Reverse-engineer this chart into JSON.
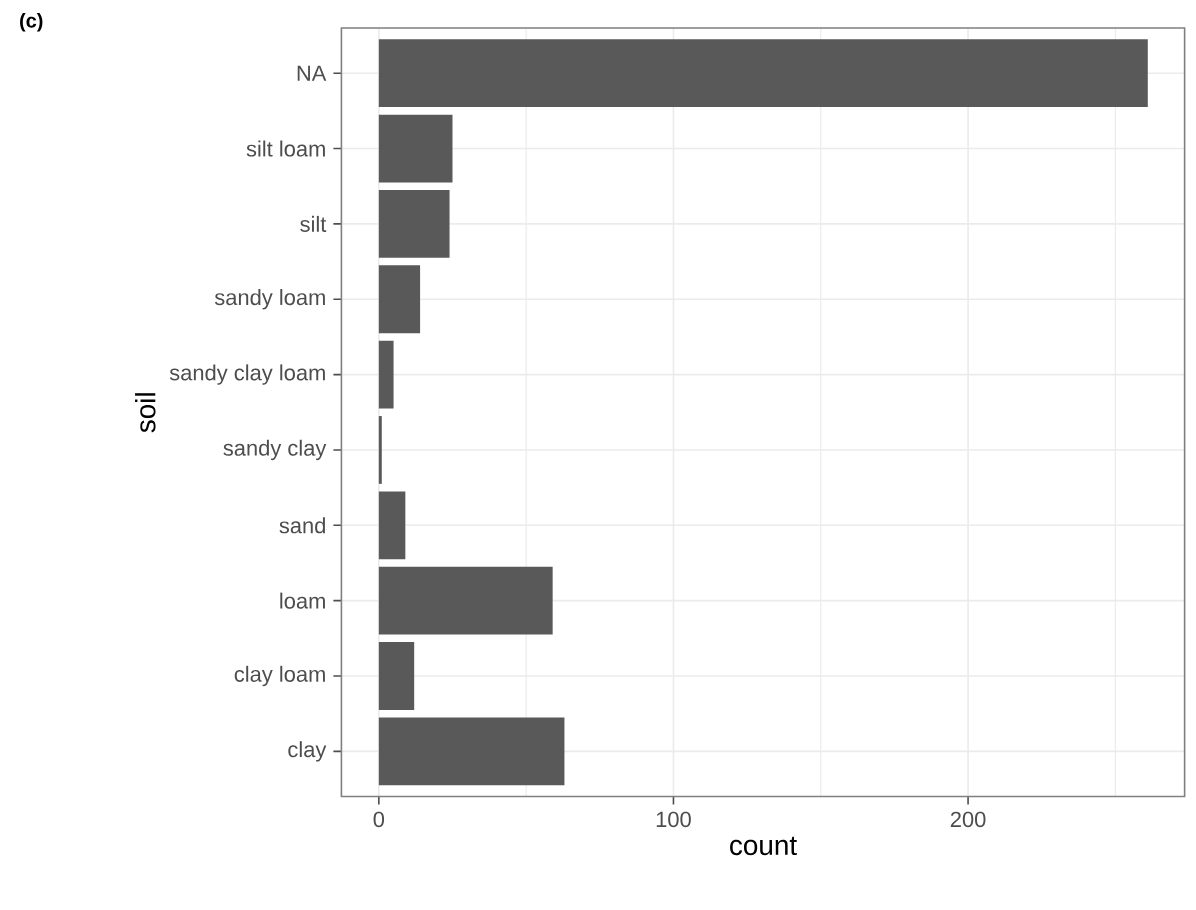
{
  "chart_data": {
    "type": "bar",
    "orientation": "horizontal",
    "title": "(c)",
    "xlabel": "count",
    "ylabel": "soil",
    "categories": [
      "NA",
      "silt loam",
      "silt",
      "sandy loam",
      "sandy clay loam",
      "sandy clay",
      "sand",
      "loam",
      "clay loam",
      "clay"
    ],
    "values": [
      261,
      25,
      24,
      14,
      5,
      1,
      9,
      59,
      12,
      63
    ],
    "color": "#595959",
    "xlim": [
      -12.7,
      273.5
    ],
    "xticks": [
      0,
      {
        "value": 50,
        "label": null
      },
      100,
      {
        "value": 150,
        "label": null
      },
      200,
      {
        "value": 250,
        "label": null
      }
    ],
    "grid": true
  }
}
